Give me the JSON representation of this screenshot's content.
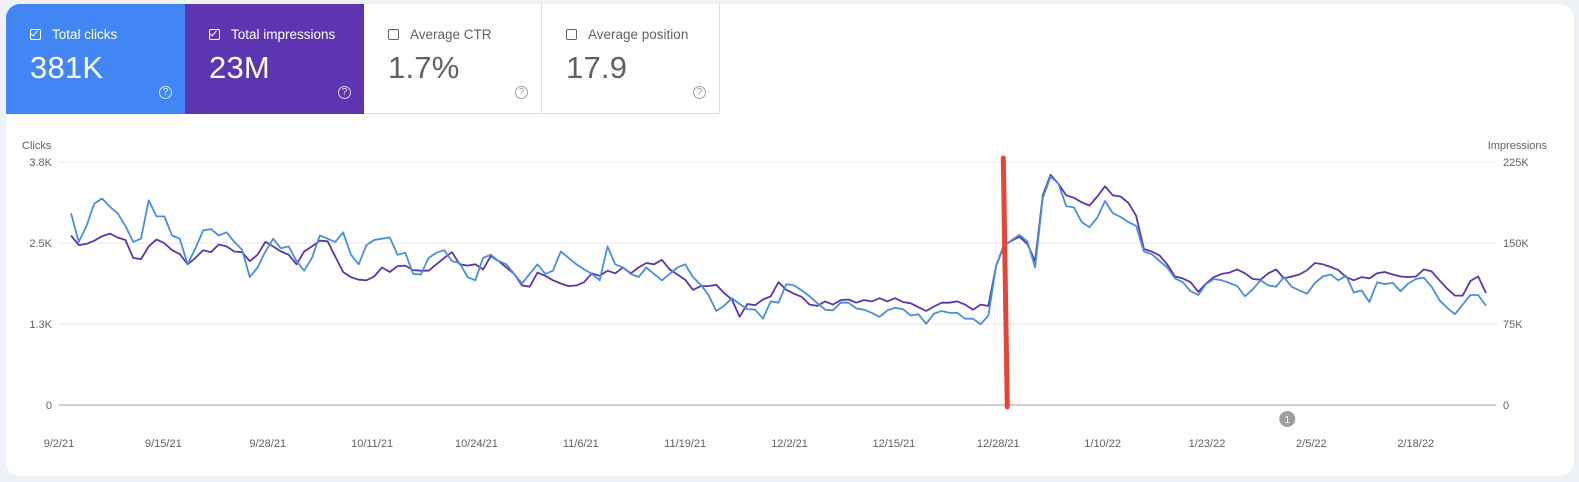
{
  "metrics": [
    {
      "label": "Total clicks",
      "value": "381K",
      "checked": true,
      "color": "#4285f4"
    },
    {
      "label": "Total impressions",
      "value": "23M",
      "checked": true,
      "color": "#5e35b1"
    },
    {
      "label": "Average CTR",
      "value": "1.7%",
      "checked": false,
      "color": "#ffffff"
    },
    {
      "label": "Average position",
      "value": "17.9",
      "checked": false,
      "color": "#ffffff"
    }
  ],
  "help_icon_glyph": "?",
  "chart_data": {
    "type": "line",
    "left_axis_label": "Clicks",
    "right_axis_label": "Impressions",
    "left_ticks": [
      "3.8K",
      "2.5K",
      "1.3K",
      "0"
    ],
    "right_ticks": [
      "225K",
      "150K",
      "75K",
      "0"
    ],
    "left_ylim": [
      0,
      3800
    ],
    "right_ylim": [
      0,
      225000
    ],
    "x_ticks": [
      "9/2/21",
      "9/15/21",
      "9/28/21",
      "10/11/21",
      "10/24/21",
      "11/6/21",
      "11/19/21",
      "12/2/21",
      "12/15/21",
      "12/28/21",
      "1/10/22",
      "1/23/22",
      "2/5/22",
      "2/18/22"
    ],
    "x_start": "2021-09-02",
    "x_end": "2022-02-28",
    "annotation_marker": "1",
    "annotation_date": "2022-02-02",
    "highlight_line_date": "2021-12-29",
    "highlight_color": "#ea4335",
    "grid": true,
    "series": [
      {
        "name": "Clicks",
        "axis": "left",
        "color": "#4a90d9",
        "values": [
          3000,
          2550,
          2800,
          3150,
          3230,
          3100,
          3000,
          2800,
          2550,
          2600,
          3200,
          2950,
          2950,
          2650,
          2600,
          2200,
          2450,
          2730,
          2750,
          2650,
          2700,
          2550,
          2430,
          2000,
          2150,
          2400,
          2600,
          2450,
          2480,
          2250,
          2100,
          2300,
          2650,
          2600,
          2550,
          2700,
          2350,
          2200,
          2500,
          2580,
          2600,
          2620,
          2350,
          2380,
          2050,
          2040,
          2300,
          2380,
          2420,
          2250,
          2220,
          2000,
          1950,
          2300,
          2350,
          2250,
          2200,
          2050,
          1900,
          2050,
          2200,
          2050,
          2100,
          2400,
          2300,
          2200,
          2120,
          2050,
          1950,
          2480,
          2200,
          2150,
          2050,
          2000,
          2150,
          2050,
          1950,
          2050,
          2150,
          2200,
          2000,
          1880,
          1720,
          1470,
          1550,
          1670,
          1580,
          1500,
          1490,
          1350,
          1620,
          1600,
          1890,
          1870,
          1790,
          1700,
          1590,
          1490,
          1480,
          1600,
          1600,
          1510,
          1490,
          1440,
          1380,
          1480,
          1520,
          1500,
          1400,
          1420,
          1270,
          1430,
          1470,
          1440,
          1440,
          1350,
          1350,
          1260,
          1400,
          2180,
          2480,
          2580,
          2660,
          2560,
          2150,
          3240,
          3570,
          3460,
          3110,
          3090,
          2860,
          2780,
          2930,
          3190,
          3000,
          2940,
          2860,
          2800,
          2400,
          2360,
          2250,
          2150,
          1980,
          1920,
          1780,
          1720,
          1890,
          1970,
          1950,
          1910,
          1860,
          1700,
          1810,
          1950,
          1870,
          1850,
          2000,
          1850,
          1790,
          1740,
          1910,
          2010,
          2040,
          1950,
          2020,
          1760,
          1790,
          1610,
          1920,
          1890,
          1910,
          1780,
          1900,
          1970,
          1990,
          1850,
          1640,
          1520,
          1420,
          1570,
          1720,
          1720,
          1550
        ]
      },
      {
        "name": "Impressions",
        "axis": "left",
        "color": "#5e35b1",
        "values": [
          2650,
          2500,
          2520,
          2570,
          2640,
          2680,
          2620,
          2580,
          2300,
          2280,
          2480,
          2590,
          2530,
          2420,
          2360,
          2200,
          2300,
          2420,
          2390,
          2510,
          2480,
          2400,
          2390,
          2250,
          2350,
          2550,
          2480,
          2400,
          2350,
          2200,
          2400,
          2480,
          2570,
          2560,
          2320,
          2080,
          2000,
          1960,
          1950,
          2010,
          2150,
          2080,
          2170,
          2180,
          2110,
          2100,
          2100,
          2200,
          2300,
          2390,
          2200,
          2180,
          2200,
          2120,
          2330,
          2250,
          2150,
          2050,
          1870,
          1850,
          2070,
          2020,
          1950,
          1900,
          1860,
          1870,
          1920,
          2060,
          2020,
          2100,
          2060,
          2150,
          2060,
          2150,
          2220,
          2200,
          2270,
          2120,
          2040,
          1960,
          1800,
          1860,
          1860,
          1880,
          1750,
          1650,
          1380,
          1580,
          1560,
          1650,
          1700,
          1920,
          1800,
          1740,
          1690,
          1570,
          1550,
          1620,
          1570,
          1640,
          1650,
          1600,
          1640,
          1620,
          1670,
          1620,
          1670,
          1610,
          1590,
          1530,
          1470,
          1540,
          1600,
          1600,
          1620,
          1570,
          1490,
          1570,
          1550,
          2180,
          2500,
          2570,
          2630,
          2520,
          2250,
          3280,
          3600,
          3460,
          3280,
          3240,
          3170,
          3120,
          3260,
          3420,
          3280,
          3260,
          3160,
          2960,
          2440,
          2400,
          2340,
          2200,
          2010,
          1980,
          1920,
          1770,
          1900,
          2000,
          2050,
          2070,
          2120,
          2060,
          1970,
          1960,
          2060,
          2120,
          1980,
          2010,
          2040,
          2110,
          2220,
          2200,
          2160,
          2110,
          2000,
          1950,
          2000,
          1980,
          2060,
          2080,
          2040,
          2010,
          2000,
          2010,
          2120,
          2090,
          1950,
          1820,
          1710,
          1710,
          1940,
          2010,
          1750
        ]
      }
    ]
  }
}
